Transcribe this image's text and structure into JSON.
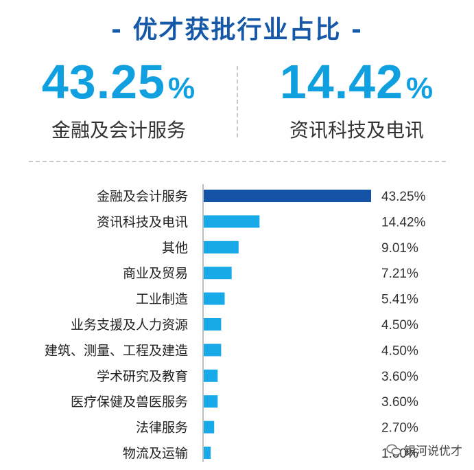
{
  "title": "- 优才获批行业占比 -",
  "highlights": [
    {
      "value": "43.25",
      "unit": "%",
      "label": "金融及会计服务"
    },
    {
      "value": "14.42",
      "unit": "%",
      "label": "资讯科技及电讯"
    }
  ],
  "watermark": "银河说优才",
  "colors": {
    "title": "#1558a8",
    "highlight": "#10a0e0",
    "bar_primary": "#1553a7",
    "bar": "#17a9e8"
  },
  "chart_data": {
    "type": "bar",
    "orientation": "horizontal",
    "categories": [
      "金融及会计服务",
      "资讯科技及电讯",
      "其他",
      "商业及贸易",
      "工业制造",
      "业务支援及人力资源",
      "建筑、测量、工程及建造",
      "学术研究及教育",
      "医疗保健及兽医服务",
      "法律服务",
      "物流及运输"
    ],
    "values": [
      43.25,
      14.42,
      9.01,
      7.21,
      5.41,
      4.5,
      4.5,
      3.6,
      3.6,
      2.7,
      1.8
    ],
    "value_labels": [
      "43.25%",
      "14.42%",
      "9.01%",
      "7.21%",
      "5.41%",
      "4.50%",
      "4.50%",
      "3.60%",
      "3.60%",
      "2.70%",
      "1.80%"
    ],
    "xlim": [
      0,
      43.25
    ],
    "grid": false
  }
}
